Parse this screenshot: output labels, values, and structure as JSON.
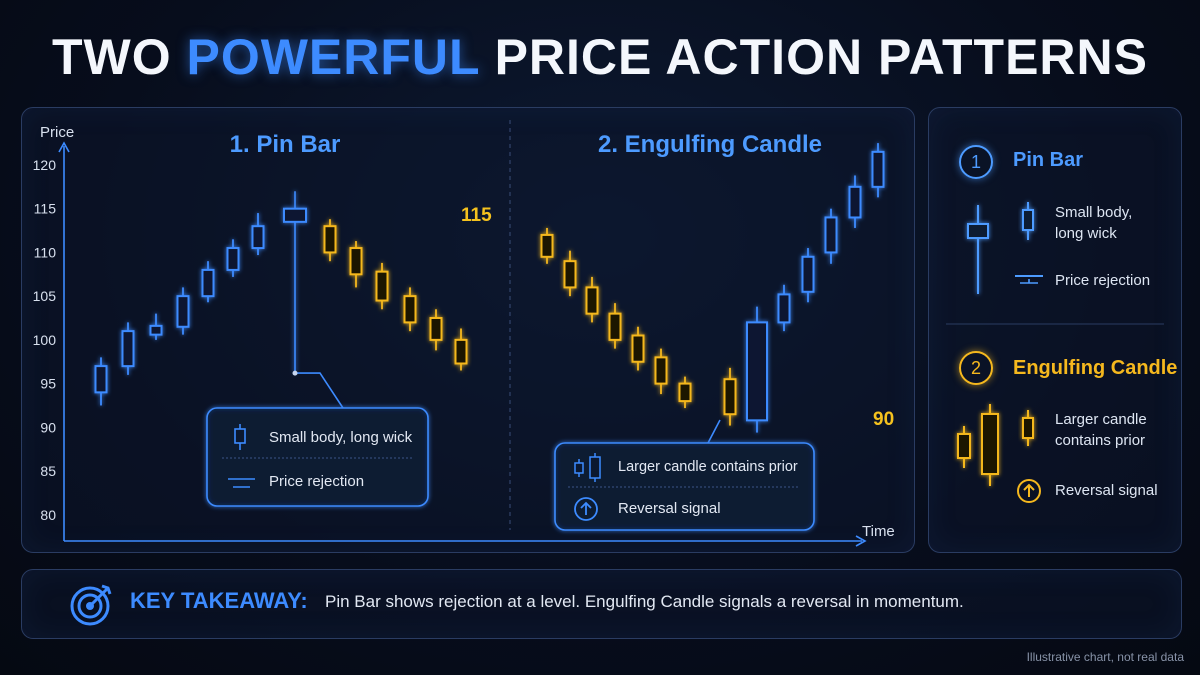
{
  "title": {
    "part1": "TWO ",
    "highlight": "POWERFUL",
    "part2": " PRICE ACTION PATTERNS"
  },
  "colors": {
    "bullish": "#3d8bff",
    "bearish": "#f5b81e",
    "level": "#f5c21e",
    "accent": "#3d8bff"
  },
  "chart_data": {
    "type": "candlestick",
    "ylabel": "Price",
    "xlabel": "Time",
    "yticks": [
      80,
      85,
      90,
      95,
      100,
      105,
      110,
      115,
      120
    ],
    "ylim": [
      77,
      124
    ],
    "sections": [
      {
        "title": "1. Pin Bar"
      },
      {
        "title": "2. Engulfing Candle"
      }
    ],
    "levels": [
      {
        "value": 115,
        "label": "115"
      },
      {
        "value": 90,
        "label": "90"
      }
    ],
    "candles": [
      {
        "o": 94,
        "c": 97,
        "h": 98,
        "l": 92.5,
        "dir": "up"
      },
      {
        "o": 97,
        "c": 101,
        "h": 102,
        "l": 96,
        "dir": "up"
      },
      {
        "o": 100.6,
        "c": 101.6,
        "h": 103,
        "l": 100,
        "dir": "up"
      },
      {
        "o": 101.5,
        "c": 105,
        "h": 106,
        "l": 100.6,
        "dir": "up"
      },
      {
        "o": 105,
        "c": 108,
        "h": 109,
        "l": 104.3,
        "dir": "up"
      },
      {
        "o": 108,
        "c": 110.5,
        "h": 111.5,
        "l": 107.2,
        "dir": "up"
      },
      {
        "o": 110.5,
        "c": 113,
        "h": 114.5,
        "l": 109.7,
        "dir": "up"
      },
      {
        "o": 113.5,
        "c": 115,
        "h": 117,
        "l": 96.2,
        "dir": "up",
        "pin": true
      },
      {
        "o": 113,
        "c": 110,
        "h": 113.8,
        "l": 109,
        "dir": "down"
      },
      {
        "o": 110.5,
        "c": 107.5,
        "h": 111.3,
        "l": 106,
        "dir": "down"
      },
      {
        "o": 107.8,
        "c": 104.5,
        "h": 108.8,
        "l": 103.5,
        "dir": "down"
      },
      {
        "o": 105,
        "c": 102,
        "h": 106,
        "l": 101,
        "dir": "down"
      },
      {
        "o": 102.5,
        "c": 100,
        "h": 103.5,
        "l": 98.8,
        "dir": "down"
      },
      {
        "o": 100,
        "c": 97.3,
        "h": 101.3,
        "l": 96.5,
        "dir": "down"
      },
      {
        "o": 112,
        "c": 109.5,
        "h": 112.8,
        "l": 108.7,
        "dir": "down"
      },
      {
        "o": 109,
        "c": 106,
        "h": 110.2,
        "l": 105,
        "dir": "down"
      },
      {
        "o": 106,
        "c": 103,
        "h": 107.2,
        "l": 102,
        "dir": "down"
      },
      {
        "o": 103,
        "c": 100,
        "h": 104.2,
        "l": 99,
        "dir": "down"
      },
      {
        "o": 100.5,
        "c": 97.5,
        "h": 101.5,
        "l": 96.5,
        "dir": "down"
      },
      {
        "o": 98,
        "c": 95,
        "h": 99,
        "l": 93.8,
        "dir": "down"
      },
      {
        "o": 95,
        "c": 93,
        "h": 95.8,
        "l": 92.2,
        "dir": "down"
      },
      {
        "o": 95.5,
        "c": 91.5,
        "h": 96.8,
        "l": 90.2,
        "dir": "down"
      },
      {
        "o": 90.8,
        "c": 102,
        "h": 103.8,
        "l": 89.4,
        "dir": "up",
        "engulf": true
      },
      {
        "o": 102,
        "c": 105.2,
        "h": 106.3,
        "l": 101,
        "dir": "up"
      },
      {
        "o": 105.5,
        "c": 109.5,
        "h": 110.5,
        "l": 104.3,
        "dir": "up"
      },
      {
        "o": 110,
        "c": 114,
        "h": 115,
        "l": 108.7,
        "dir": "up"
      },
      {
        "o": 114,
        "c": 117.5,
        "h": 118.8,
        "l": 112.8,
        "dir": "up"
      },
      {
        "o": 117.5,
        "c": 121.5,
        "h": 122.5,
        "l": 116.3,
        "dir": "up"
      }
    ],
    "callouts": [
      {
        "line1": "Small body, long wick",
        "line2": "Price rejection"
      },
      {
        "line1": "Larger candle contains prior",
        "line2": "Reversal signal"
      }
    ]
  },
  "legend": {
    "pin": {
      "num": "1",
      "title": "Pin Bar",
      "desc1": "Small body,",
      "desc2": "long wick",
      "desc3": "Price rejection"
    },
    "engulf": {
      "num": "2",
      "title": "Engulfing Candle",
      "desc1": "Larger candle",
      "desc2": "contains prior",
      "desc3": "Reversal signal"
    }
  },
  "takeaway": {
    "label": "KEY TAKEAWAY:",
    "text": "Pin Bar shows rejection at a level. Engulfing Candle signals a reversal in momentum."
  },
  "footnote": "Illustrative chart, not real data"
}
